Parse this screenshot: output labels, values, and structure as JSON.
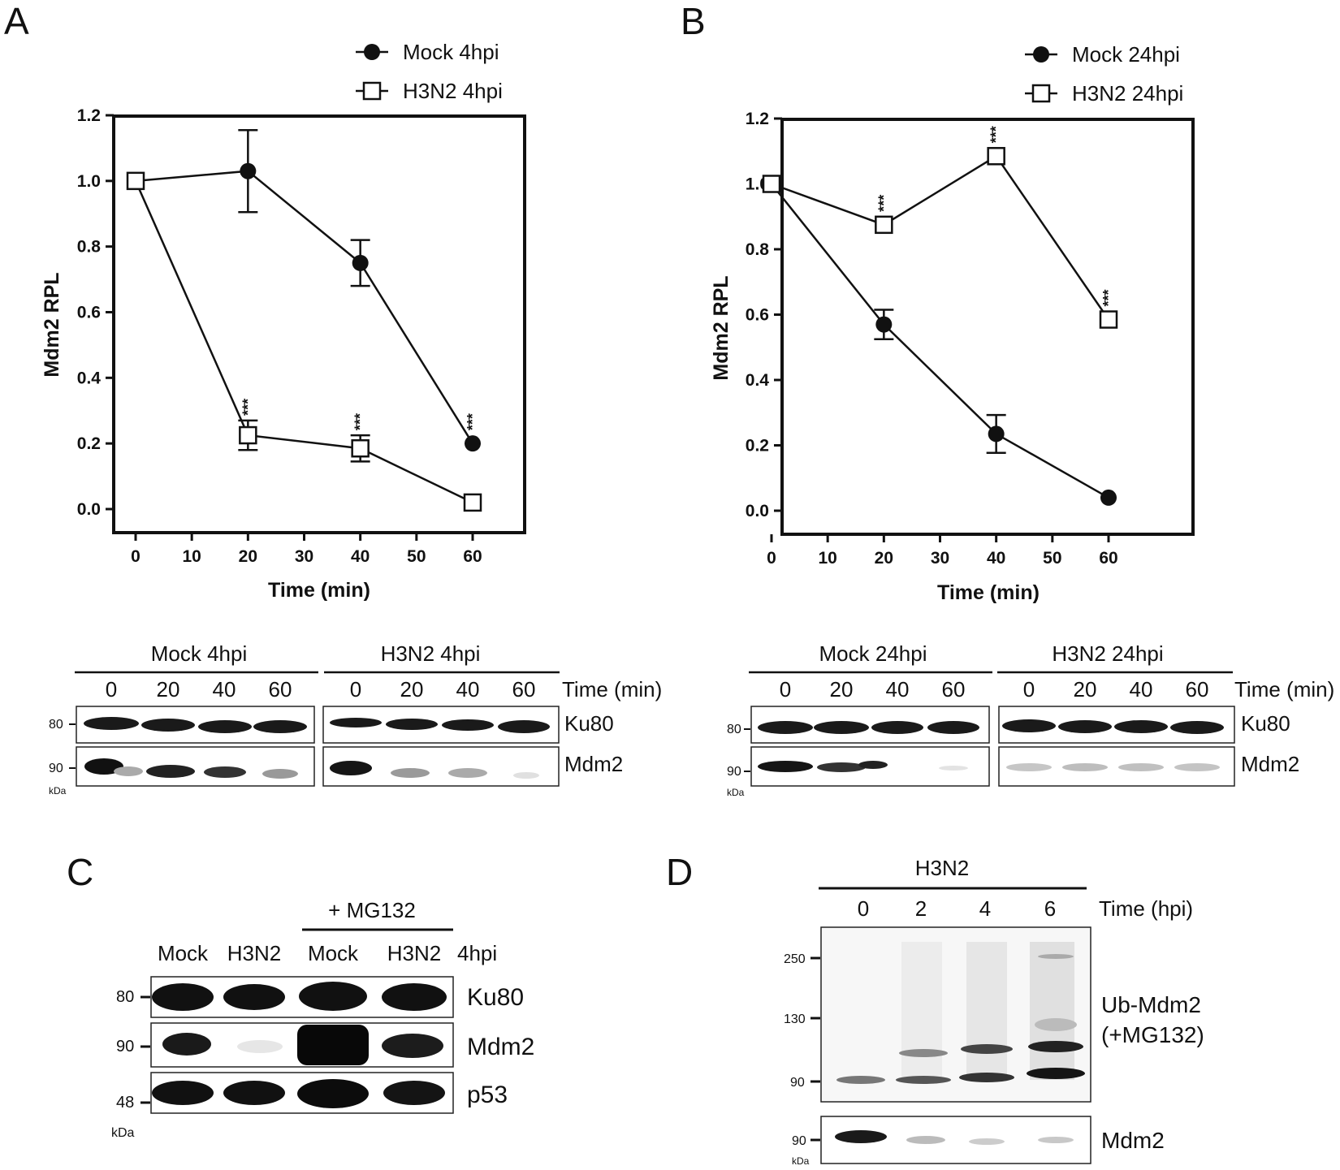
{
  "panels": {
    "A": {
      "letter": "A",
      "legend": [
        "Mock 4hpi",
        "H3N2 4hpi"
      ],
      "ylabel": "Mdm2 RPL",
      "xlabel": "Time (min)",
      "blot": {
        "groups": [
          "Mock 4hpi",
          "H3N2 4hpi"
        ],
        "lane_labels": [
          "0",
          "20",
          "40",
          "60",
          "0",
          "20",
          "40",
          "60"
        ],
        "time_label": "Time (min)",
        "rows": [
          "Ku80",
          "Mdm2"
        ],
        "markers": [
          "80",
          "90"
        ],
        "unit": "kDa"
      }
    },
    "B": {
      "letter": "B",
      "legend": [
        "Mock 24hpi",
        "H3N2 24hpi"
      ],
      "ylabel": "Mdm2 RPL",
      "xlabel": "Time (min)",
      "blot": {
        "groups": [
          "Mock 24hpi",
          "H3N2 24hpi"
        ],
        "lane_labels": [
          "0",
          "20",
          "40",
          "60",
          "0",
          "20",
          "40",
          "60"
        ],
        "time_label": "Time (min)",
        "rows": [
          "Ku80",
          "Mdm2"
        ],
        "markers": [
          "80",
          "90"
        ],
        "unit": "kDa"
      }
    },
    "C": {
      "letter": "C",
      "treatment": "+ MG132",
      "lanes": [
        "Mock",
        "H3N2",
        "Mock",
        "H3N2"
      ],
      "time_label": "4hpi",
      "rows": [
        "Ku80",
        "Mdm2",
        "p53"
      ],
      "markers": [
        "80",
        "90",
        "48"
      ],
      "unit": "kDa"
    },
    "D": {
      "letter": "D",
      "group": "H3N2",
      "lanes": [
        "0",
        "2",
        "4",
        "6"
      ],
      "time_label": "Time (hpi)",
      "ub_label_1": "Ub-Mdm2",
      "ub_label_2": "(+MG132)",
      "markers": [
        "250",
        "130",
        "90"
      ],
      "mdm2_label": "Mdm2",
      "mdm2_marker": "90",
      "unit": "kDa"
    }
  },
  "chart_data": [
    {
      "type": "line",
      "panel": "A",
      "xlabel": "Time (min)",
      "ylabel": "Mdm2 RPL",
      "xlim": [
        0,
        60
      ],
      "ylim": [
        0,
        1.2
      ],
      "xticks": [
        0,
        10,
        20,
        30,
        40,
        50,
        60
      ],
      "yticks": [
        0.0,
        0.2,
        0.4,
        0.6,
        0.8,
        1.0,
        1.2
      ],
      "series": [
        {
          "name": "Mock 4hpi",
          "marker": "filled-circle",
          "x": [
            0,
            20,
            40,
            60
          ],
          "y": [
            1.0,
            1.03,
            0.75,
            0.2
          ],
          "err": [
            0,
            0.125,
            0.07,
            0
          ],
          "sig": [
            "",
            "",
            "",
            "***"
          ]
        },
        {
          "name": "H3N2 4hpi",
          "marker": "open-square",
          "x": [
            0,
            20,
            40,
            60
          ],
          "y": [
            1.0,
            0.225,
            0.185,
            0.02
          ],
          "err": [
            0,
            0.045,
            0.04,
            0
          ],
          "sig": [
            "",
            "***",
            "***",
            ""
          ]
        }
      ]
    },
    {
      "type": "line",
      "panel": "B",
      "xlabel": "Time (min)",
      "ylabel": "Mdm2 RPL",
      "xlim": [
        0,
        60
      ],
      "ylim": [
        0,
        1.2
      ],
      "xticks": [
        0,
        10,
        20,
        30,
        40,
        50,
        60
      ],
      "yticks": [
        0.0,
        0.2,
        0.4,
        0.6,
        0.8,
        1.0,
        1.2
      ],
      "series": [
        {
          "name": "Mock 24hpi",
          "marker": "filled-circle",
          "x": [
            0,
            20,
            40,
            60
          ],
          "y": [
            1.0,
            0.57,
            0.235,
            0.04
          ],
          "err": [
            0,
            0.045,
            0.058,
            0
          ],
          "sig": [
            "",
            "",
            "",
            ""
          ]
        },
        {
          "name": "H3N2 24hpi",
          "marker": "open-square",
          "x": [
            0,
            20,
            40,
            60
          ],
          "y": [
            1.0,
            0.875,
            1.085,
            0.585
          ],
          "err": [
            0,
            0,
            0,
            0
          ],
          "sig": [
            "",
            "***",
            "***",
            "***"
          ]
        }
      ]
    }
  ],
  "colors": {
    "ink": "#111111",
    "band": "#1a1a1a"
  }
}
